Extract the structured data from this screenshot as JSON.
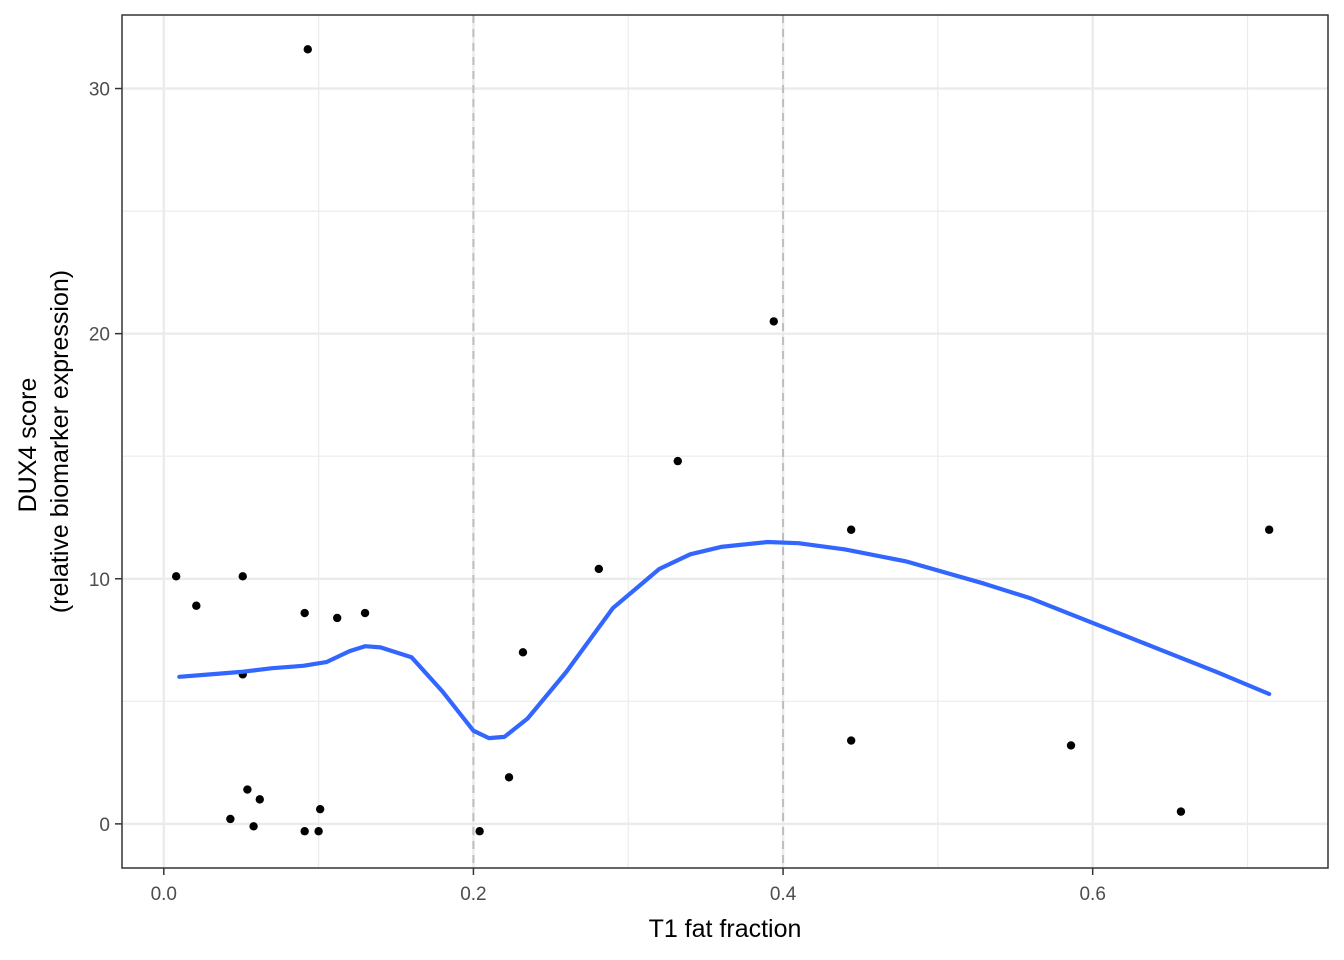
{
  "chart_data": {
    "type": "scatter",
    "title": "",
    "xlabel": "T1 fat fraction",
    "ylabel_lines": [
      "DUX4 score",
      "(relative biomarker expression)"
    ],
    "xlim": [
      -0.027,
      0.752
    ],
    "ylim": [
      -1.8,
      33.0
    ],
    "x_ticks": [
      0.0,
      0.2,
      0.4,
      0.6
    ],
    "x_tick_labels": [
      "0.0",
      "0.2",
      "0.4",
      "0.6"
    ],
    "y_ticks": [
      0,
      10,
      20,
      30
    ],
    "y_tick_labels": [
      "0",
      "10",
      "20",
      "30"
    ],
    "grid": true,
    "vlines": [
      0.2,
      0.4
    ],
    "colors": {
      "points": "#000000",
      "smooth": "#3366ff",
      "vline": "#bebebe",
      "grid": "#ebebeb",
      "panel_border": "#333333"
    },
    "series": [
      {
        "kind": "points",
        "x": [
          0.008,
          0.021,
          0.043,
          0.051,
          0.051,
          0.054,
          0.058,
          0.062,
          0.091,
          0.091,
          0.093,
          0.1,
          0.101,
          0.112,
          0.13,
          0.204,
          0.223,
          0.232,
          0.281,
          0.332,
          0.394,
          0.444,
          0.444,
          0.586,
          0.657,
          0.714
        ],
        "y": [
          10.1,
          8.9,
          0.2,
          10.1,
          6.1,
          1.4,
          -0.1,
          1.0,
          8.6,
          -0.3,
          31.6,
          -0.3,
          0.6,
          8.4,
          8.6,
          -0.3,
          1.9,
          7.0,
          10.4,
          14.8,
          20.5,
          12.0,
          3.4,
          3.2,
          0.5,
          12.0
        ]
      },
      {
        "kind": "smooth",
        "x": [
          0.01,
          0.03,
          0.05,
          0.07,
          0.09,
          0.105,
          0.12,
          0.13,
          0.14,
          0.16,
          0.18,
          0.2,
          0.21,
          0.22,
          0.235,
          0.26,
          0.29,
          0.32,
          0.34,
          0.36,
          0.39,
          0.41,
          0.44,
          0.48,
          0.53,
          0.56,
          0.6,
          0.64,
          0.68,
          0.714
        ],
        "y": [
          6.0,
          6.1,
          6.2,
          6.35,
          6.45,
          6.6,
          7.05,
          7.25,
          7.2,
          6.8,
          5.4,
          3.8,
          3.5,
          3.55,
          4.3,
          6.2,
          8.8,
          10.4,
          11.0,
          11.3,
          11.5,
          11.45,
          11.2,
          10.7,
          9.8,
          9.2,
          8.2,
          7.2,
          6.2,
          5.3
        ]
      }
    ]
  }
}
